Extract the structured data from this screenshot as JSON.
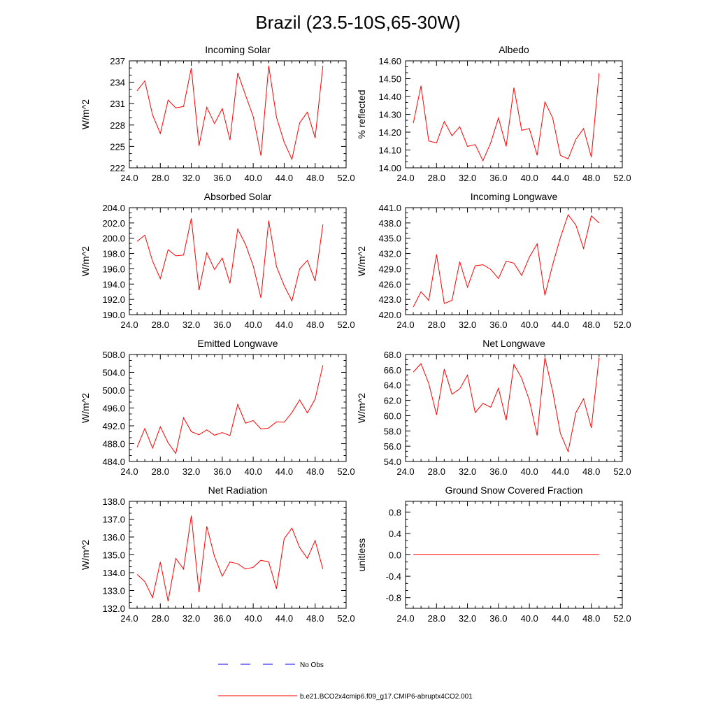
{
  "title": "Brazil (23.5-10S,65-30W)",
  "colors": {
    "model": "#ff0000",
    "obs": "#0000ff",
    "axes": "#000000"
  },
  "legend": {
    "placement": "bottom-center",
    "obs_label": "No Obs",
    "model_label": "b.e21.BCO2x4cmip6.f09_g17.CMIP6-abruptx4CO2.001"
  },
  "chart_data": [
    {
      "type": "line",
      "title": "Incoming Solar",
      "ylabel": "W/m^2",
      "xlim": [
        24,
        52
      ],
      "ylim": [
        222,
        237
      ],
      "xticks": [
        "24.0",
        "28.0",
        "32.0",
        "36.0",
        "40.0",
        "44.0",
        "48.0",
        "52.0"
      ],
      "yticks": [
        "222",
        "225",
        "228",
        "231",
        "234",
        "237"
      ],
      "x": [
        25,
        26,
        27,
        28,
        29,
        30,
        31,
        32,
        33,
        34,
        35,
        36,
        37,
        38,
        39,
        40,
        41,
        42,
        43,
        44,
        45,
        46,
        47,
        48,
        49
      ],
      "series": [
        {
          "values": [
            232.8,
            234.2,
            229.4,
            226.8,
            231.5,
            230.4,
            230.6,
            236.0,
            225.1,
            230.5,
            228.2,
            230.3,
            225.9,
            235.3,
            232.2,
            229.2,
            223.7,
            236.3,
            229.1,
            225.6,
            223.2,
            228.3,
            229.8,
            226.2,
            236.3
          ]
        }
      ]
    },
    {
      "type": "line",
      "title": "Albedo",
      "ylabel": "% reflected",
      "xlim": [
        24,
        52
      ],
      "ylim": [
        14.0,
        14.6
      ],
      "xticks": [
        "24.0",
        "28.0",
        "32.0",
        "36.0",
        "40.0",
        "44.0",
        "48.0",
        "52.0"
      ],
      "yticks": [
        "14.00",
        "14.10",
        "14.20",
        "14.30",
        "14.40",
        "14.50",
        "14.60"
      ],
      "x": [
        25,
        26,
        27,
        28,
        29,
        30,
        31,
        32,
        33,
        34,
        35,
        36,
        37,
        38,
        39,
        40,
        41,
        42,
        43,
        44,
        45,
        46,
        47,
        48,
        49
      ],
      "series": [
        {
          "values": [
            14.25,
            14.46,
            14.15,
            14.14,
            14.26,
            14.18,
            14.23,
            14.12,
            14.13,
            14.04,
            14.14,
            14.28,
            14.12,
            14.45,
            14.21,
            14.22,
            14.07,
            14.37,
            14.28,
            14.07,
            14.05,
            14.16,
            14.22,
            14.06,
            14.53
          ]
        }
      ]
    },
    {
      "type": "line",
      "title": "Absorbed Solar",
      "ylabel": "W/m^2",
      "xlim": [
        24,
        52
      ],
      "ylim": [
        190,
        204
      ],
      "xticks": [
        "24.0",
        "28.0",
        "32.0",
        "36.0",
        "40.0",
        "44.0",
        "48.0",
        "52.0"
      ],
      "yticks": [
        "190.0",
        "192.0",
        "194.0",
        "196.0",
        "198.0",
        "200.0",
        "202.0",
        "204.0"
      ],
      "x": [
        25,
        26,
        27,
        28,
        29,
        30,
        31,
        32,
        33,
        34,
        35,
        36,
        37,
        38,
        39,
        40,
        41,
        42,
        43,
        44,
        45,
        46,
        47,
        48,
        49
      ],
      "series": [
        {
          "values": [
            199.6,
            200.4,
            197.0,
            194.7,
            198.5,
            197.7,
            197.8,
            202.6,
            193.2,
            198.1,
            195.9,
            197.4,
            194.1,
            201.2,
            199.2,
            196.4,
            192.2,
            202.3,
            196.3,
            193.8,
            191.8,
            196.0,
            197.1,
            194.4,
            201.8
          ]
        }
      ]
    },
    {
      "type": "line",
      "title": "Incoming Longwave",
      "ylabel": "W/m^2",
      "xlim": [
        24,
        52
      ],
      "ylim": [
        420,
        441
      ],
      "xticks": [
        "24.0",
        "28.0",
        "32.0",
        "36.0",
        "40.0",
        "44.0",
        "48.0",
        "52.0"
      ],
      "yticks": [
        "420.0",
        "423.0",
        "426.0",
        "429.0",
        "432.0",
        "435.0",
        "438.0",
        "441.0"
      ],
      "x": [
        25,
        26,
        27,
        28,
        29,
        30,
        31,
        32,
        33,
        34,
        35,
        36,
        37,
        38,
        39,
        40,
        41,
        42,
        43,
        44,
        45,
        46,
        47,
        48,
        49
      ],
      "series": [
        {
          "values": [
            421.5,
            424.5,
            422.8,
            431.8,
            422.2,
            422.8,
            430.4,
            425.4,
            429.6,
            429.8,
            428.9,
            427.1,
            430.5,
            430.1,
            427.7,
            431.3,
            433.9,
            423.8,
            429.8,
            435.1,
            439.6,
            437.6,
            433.0,
            439.4,
            438.0
          ]
        }
      ]
    },
    {
      "type": "line",
      "title": "Emitted Longwave",
      "ylabel": "W/m^2",
      "xlim": [
        24,
        52
      ],
      "ylim": [
        484,
        508
      ],
      "xticks": [
        "24.0",
        "28.0",
        "32.0",
        "36.0",
        "40.0",
        "44.0",
        "48.0",
        "52.0"
      ],
      "yticks": [
        "484.0",
        "488.0",
        "492.0",
        "496.0",
        "500.0",
        "504.0",
        "508.0"
      ],
      "x": [
        25,
        26,
        27,
        28,
        29,
        30,
        31,
        32,
        33,
        34,
        35,
        36,
        37,
        38,
        39,
        40,
        41,
        42,
        43,
        44,
        45,
        46,
        47,
        48,
        49
      ],
      "series": [
        {
          "values": [
            487.2,
            491.4,
            487.0,
            491.8,
            488.2,
            485.8,
            493.8,
            490.7,
            490.0,
            491.1,
            489.9,
            490.5,
            489.8,
            496.8,
            492.6,
            493.2,
            491.3,
            491.5,
            492.9,
            492.8,
            495.0,
            497.8,
            494.9,
            498.0,
            505.6
          ]
        }
      ]
    },
    {
      "type": "line",
      "title": "Net Longwave",
      "ylabel": "W/m^2",
      "xlim": [
        24,
        52
      ],
      "ylim": [
        54,
        68
      ],
      "xticks": [
        "24.0",
        "28.0",
        "32.0",
        "36.0",
        "40.0",
        "44.0",
        "48.0",
        "52.0"
      ],
      "yticks": [
        "54.0",
        "56.0",
        "58.0",
        "60.0",
        "62.0",
        "64.0",
        "66.0",
        "68.0"
      ],
      "x": [
        25,
        26,
        27,
        28,
        29,
        30,
        31,
        32,
        33,
        34,
        35,
        36,
        37,
        38,
        39,
        40,
        41,
        42,
        43,
        44,
        45,
        46,
        47,
        48,
        49
      ],
      "series": [
        {
          "values": [
            65.7,
            66.8,
            64.2,
            60.1,
            66.1,
            62.8,
            63.5,
            65.3,
            60.4,
            61.6,
            61.1,
            63.6,
            59.4,
            66.7,
            64.9,
            62.0,
            57.4,
            67.6,
            63.2,
            57.7,
            55.3,
            60.4,
            62.2,
            58.4,
            67.6
          ]
        }
      ]
    },
    {
      "type": "line",
      "title": "Net Radiation",
      "ylabel": "W/m^2",
      "xlim": [
        24,
        52
      ],
      "ylim": [
        132,
        138
      ],
      "xticks": [
        "24.0",
        "28.0",
        "32.0",
        "36.0",
        "40.0",
        "44.0",
        "48.0",
        "52.0"
      ],
      "yticks": [
        "132.0",
        "133.0",
        "134.0",
        "135.0",
        "136.0",
        "137.0",
        "138.0"
      ],
      "x": [
        25,
        26,
        27,
        28,
        29,
        30,
        31,
        32,
        33,
        34,
        35,
        36,
        37,
        38,
        39,
        40,
        41,
        42,
        43,
        44,
        45,
        46,
        47,
        48,
        49
      ],
      "series": [
        {
          "values": [
            133.9,
            133.5,
            132.6,
            134.6,
            132.4,
            134.8,
            134.2,
            137.2,
            132.9,
            136.6,
            134.9,
            133.8,
            134.6,
            134.5,
            134.2,
            134.3,
            134.7,
            134.6,
            133.1,
            135.9,
            136.5,
            135.4,
            134.8,
            135.8,
            134.2
          ]
        }
      ]
    },
    {
      "type": "line",
      "title": "Ground Snow Covered Fraction",
      "ylabel": "unitless",
      "xlim": [
        24,
        52
      ],
      "ylim": [
        -1.0,
        1.0
      ],
      "xticks": [
        "24.0",
        "28.0",
        "32.0",
        "36.0",
        "40.0",
        "44.0",
        "48.0",
        "52.0"
      ],
      "yticks": [
        "-0.8",
        "-0.4",
        "0.0",
        "0.4",
        "0.8"
      ],
      "x": [
        25,
        26,
        27,
        28,
        29,
        30,
        31,
        32,
        33,
        34,
        35,
        36,
        37,
        38,
        39,
        40,
        41,
        42,
        43,
        44,
        45,
        46,
        47,
        48,
        49
      ],
      "series": [
        {
          "values": [
            0,
            0,
            0,
            0,
            0,
            0,
            0,
            0,
            0,
            0,
            0,
            0,
            0,
            0,
            0,
            0,
            0,
            0,
            0,
            0,
            0,
            0,
            0,
            0,
            0
          ]
        }
      ]
    }
  ]
}
